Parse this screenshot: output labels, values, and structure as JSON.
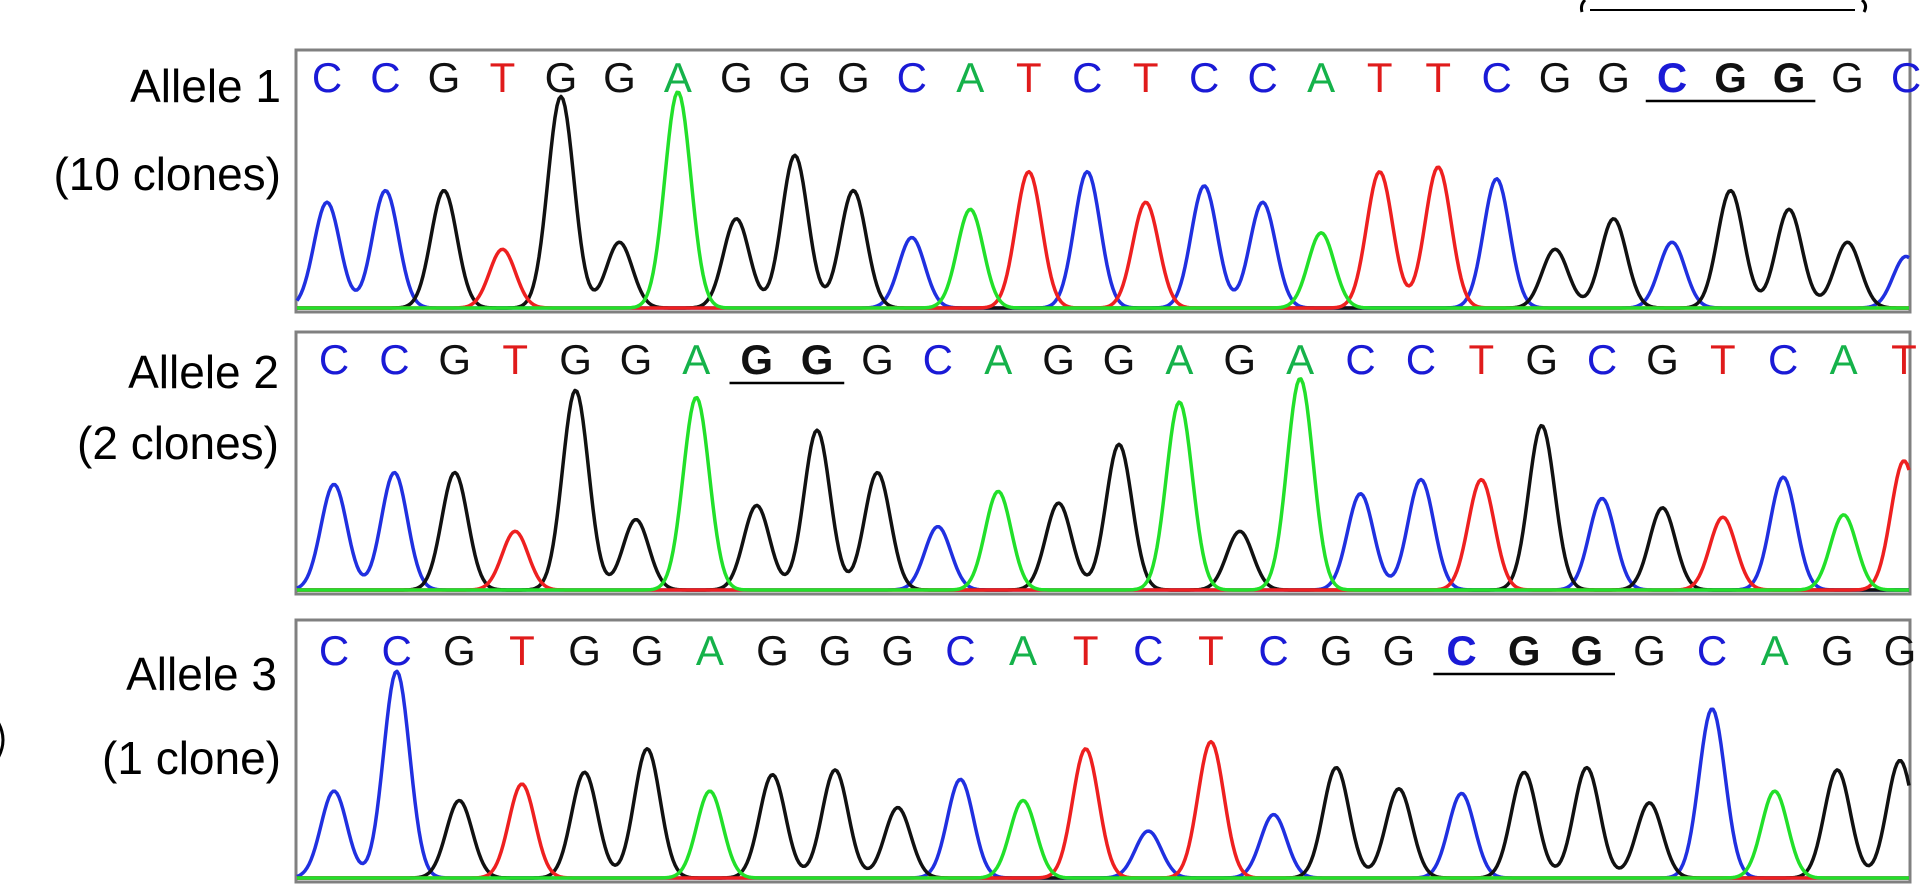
{
  "colors": {
    "C": "#1a1ad6",
    "G": "#111111",
    "T": "#e01b1b",
    "A": "#15b24a",
    "trace_C": "#2030e0",
    "trace_G": "#111111",
    "trace_T": "#ee2020",
    "trace_A": "#22e02a",
    "frame": "#808080"
  },
  "panels": [
    {
      "label": "Allele 1",
      "clones": "(10 clones)",
      "sequence": "CCGTGGAGGGCATCTCCATTCGGCGGGC",
      "highlight": [
        23,
        25
      ],
      "peaks": [
        0.45,
        0.5,
        0.5,
        0.25,
        0.9,
        0.28,
        0.92,
        0.38,
        0.65,
        0.5,
        0.3,
        0.42,
        0.58,
        0.58,
        0.45,
        0.52,
        0.45,
        0.32,
        0.58,
        0.6,
        0.55,
        0.25,
        0.38,
        0.28,
        0.5,
        0.42,
        0.28,
        0.22
      ]
    },
    {
      "label": "Allele 2",
      "clones": "(2 clones)",
      "sequence": "CCGTGGAGGGCAGGAGACCTGCGTCAT",
      "highlight": [
        7,
        8
      ],
      "peaks": [
        0.45,
        0.5,
        0.5,
        0.25,
        0.85,
        0.3,
        0.82,
        0.36,
        0.68,
        0.5,
        0.27,
        0.42,
        0.37,
        0.62,
        0.8,
        0.25,
        0.9,
        0.41,
        0.47,
        0.47,
        0.7,
        0.39,
        0.35,
        0.31,
        0.48,
        0.32,
        0.55
      ]
    },
    {
      "label": "Allele 3",
      "clones": "(1 clone)",
      "sequence": "CCGTGGAGGGCATCTCGGCGGGCAGG",
      "highlight": [
        18,
        20
      ],
      "peaks": [
        0.37,
        0.88,
        0.33,
        0.4,
        0.45,
        0.55,
        0.37,
        0.44,
        0.46,
        0.3,
        0.42,
        0.33,
        0.55,
        0.2,
        0.58,
        0.27,
        0.47,
        0.38,
        0.36,
        0.45,
        0.47,
        0.32,
        0.72,
        0.37,
        0.46,
        0.5
      ]
    }
  ]
}
